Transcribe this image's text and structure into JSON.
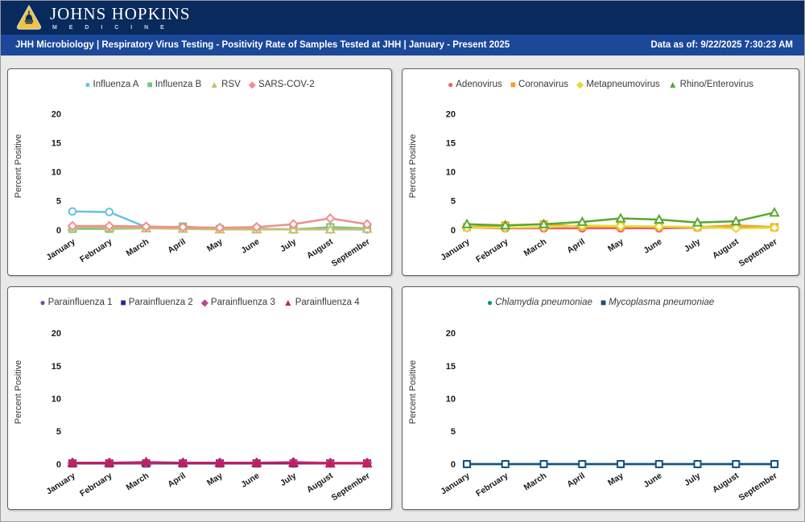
{
  "colors": {
    "header_bg": "#082a5c",
    "title_bar_bg": "#1c4899",
    "page_bg": "#e9e9e9",
    "panel_border": "#5f5f5f",
    "logo_gold": "#f0c440"
  },
  "header": {
    "logo_icon": "johns-hopkins-shield-icon",
    "brand_line1": "JOHNS HOPKINS",
    "brand_line2": "M E D I C I N E"
  },
  "title_bar": {
    "title": "JHH Microbiology | Respiratory Virus Testing - Positivity Rate of Samples Tested at JHH | January - Present 2025",
    "data_as_of": "Data as of: 9/22/2025 7:30:23 AM"
  },
  "chart_data": [
    {
      "type": "line",
      "name": "influenza-rsv-sarscov2",
      "categories": [
        "January",
        "February",
        "March",
        "April",
        "May",
        "June",
        "July",
        "August",
        "September"
      ],
      "xlabel": "",
      "ylabel": "Percent Positive",
      "ylim": [
        0,
        22
      ],
      "yticks": [
        0,
        5,
        10,
        15,
        20
      ],
      "grid": false,
      "legend_position": "top",
      "series": [
        {
          "name": "Influenza A",
          "color": "#66c2de",
          "marker": "circle",
          "values": [
            3.2,
            3.1,
            0.5,
            0.3,
            0.2,
            0.2,
            0.1,
            0.1,
            0.1
          ]
        },
        {
          "name": "Influenza B",
          "color": "#77c47e",
          "marker": "square",
          "values": [
            0.2,
            0.2,
            0.3,
            0.6,
            0.2,
            0.2,
            0.1,
            0.5,
            0.3
          ]
        },
        {
          "name": "RSV",
          "color": "#c9be6e",
          "marker": "triangle",
          "values": [
            0.6,
            0.4,
            0.3,
            0.2,
            0.1,
            0.1,
            0.1,
            0.1,
            0.2
          ]
        },
        {
          "name": "SARS-COV-2",
          "color": "#ef8f8f",
          "marker": "diamond",
          "values": [
            0.7,
            0.7,
            0.6,
            0.5,
            0.4,
            0.5,
            1.0,
            2.0,
            1.0
          ]
        }
      ]
    },
    {
      "type": "line",
      "name": "adeno-corona-metapneumo-rhino",
      "categories": [
        "January",
        "February",
        "March",
        "April",
        "May",
        "June",
        "July",
        "August",
        "September"
      ],
      "xlabel": "",
      "ylabel": "Percent Positive",
      "ylim": [
        0,
        22
      ],
      "yticks": [
        0,
        5,
        10,
        15,
        20
      ],
      "grid": false,
      "legend_position": "top",
      "series": [
        {
          "name": "Adenovirus",
          "color": "#ea6266",
          "marker": "circle",
          "values": [
            0.4,
            0.3,
            0.3,
            0.3,
            0.3,
            0.3,
            0.4,
            0.4,
            0.4
          ]
        },
        {
          "name": "Coronavirus",
          "color": "#f0a22c",
          "marker": "square",
          "values": [
            0.5,
            0.8,
            1.0,
            0.6,
            0.6,
            0.6,
            0.5,
            0.8,
            0.5
          ]
        },
        {
          "name": "Metapneumovirus",
          "color": "#e6dc35",
          "marker": "diamond",
          "values": [
            0.4,
            0.4,
            0.5,
            0.8,
            0.7,
            0.6,
            0.5,
            0.3,
            0.4
          ]
        },
        {
          "name": "Rhino/Enterovirus",
          "color": "#55a832",
          "marker": "triangle",
          "values": [
            1.0,
            0.8,
            1.0,
            1.4,
            2.0,
            1.8,
            1.3,
            1.5,
            3.0
          ]
        }
      ]
    },
    {
      "type": "line",
      "name": "parainfluenza",
      "categories": [
        "January",
        "February",
        "March",
        "April",
        "May",
        "June",
        "July",
        "August",
        "September"
      ],
      "xlabel": "",
      "ylabel": "Percent Positive",
      "ylim": [
        0,
        22
      ],
      "yticks": [
        0,
        5,
        10,
        15,
        20
      ],
      "grid": false,
      "legend_position": "top",
      "series": [
        {
          "name": "Parainfluenza 1",
          "color": "#7d4ea6",
          "marker": "circle",
          "values": [
            0.1,
            0.1,
            0.1,
            0.1,
            0.1,
            0.1,
            0.1,
            0.1,
            0.1
          ]
        },
        {
          "name": "Parainfluenza 2",
          "color": "#252896",
          "marker": "square",
          "solid": true,
          "values": [
            0.1,
            0.1,
            0.1,
            0.1,
            0.1,
            0.1,
            0.1,
            0.1,
            0.1
          ]
        },
        {
          "name": "Parainfluenza 3",
          "color": "#c2458f",
          "marker": "diamond",
          "values": [
            0.2,
            0.2,
            0.2,
            0.2,
            0.2,
            0.2,
            0.3,
            0.2,
            0.2
          ]
        },
        {
          "name": "Parainfluenza 4",
          "color": "#c51e5c",
          "marker": "triangle",
          "solid": true,
          "values": [
            0.2,
            0.2,
            0.3,
            0.2,
            0.2,
            0.2,
            0.2,
            0.1,
            0.1
          ]
        }
      ]
    },
    {
      "type": "line",
      "name": "atypical-pneumonia",
      "categories": [
        "January",
        "February",
        "March",
        "April",
        "May",
        "June",
        "July",
        "August",
        "September"
      ],
      "xlabel": "",
      "ylabel": "Percent Positive",
      "ylim": [
        0,
        22
      ],
      "yticks": [
        0,
        5,
        10,
        15,
        20
      ],
      "grid": false,
      "legend_position": "top",
      "series": [
        {
          "name": "Chlamydia pneumoniae",
          "color": "#0e8f82",
          "marker": "circle",
          "italic": true,
          "values": [
            0,
            0,
            0,
            0,
            0,
            0,
            0,
            0,
            0
          ]
        },
        {
          "name": "Mycoplasma pneumoniae",
          "color": "#17507f",
          "marker": "square",
          "italic": true,
          "values": [
            0,
            0,
            0,
            0,
            0,
            0,
            0,
            0,
            0
          ]
        }
      ]
    }
  ]
}
